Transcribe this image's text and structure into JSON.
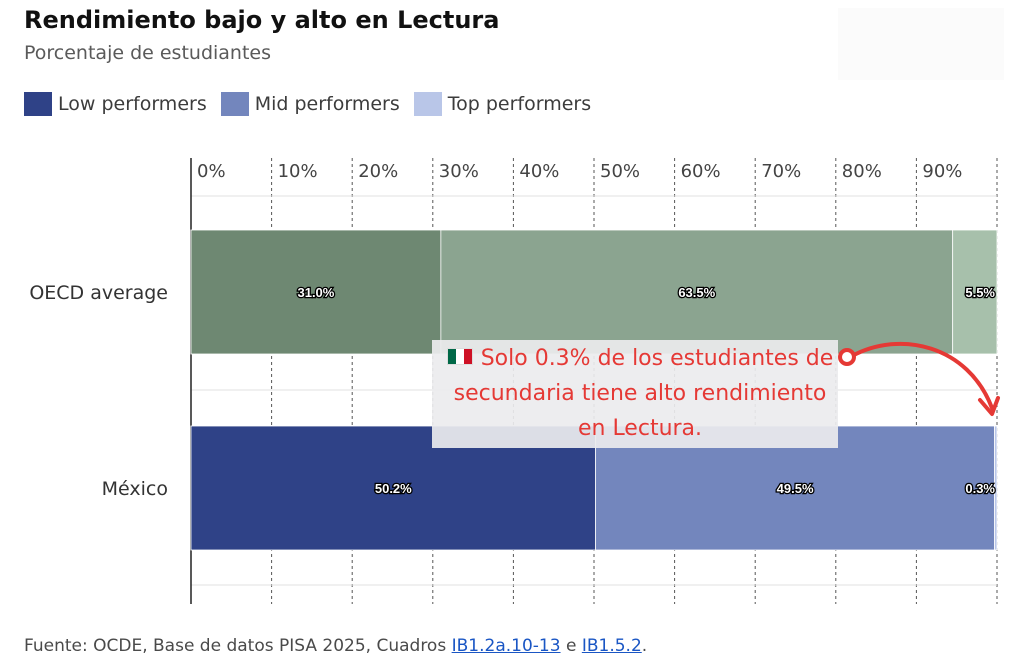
{
  "title": "Rendimiento bajo y alto en Lectura",
  "subtitle": "Porcentaje de estudiantes",
  "legend": [
    {
      "label": "Low performers",
      "color": "#2f4287"
    },
    {
      "label": "Mid performers",
      "color": "#7386bd"
    },
    {
      "label": "Top performers",
      "color": "#b9c6e8"
    }
  ],
  "annotation": {
    "flag_icon": "mexico-flag-icon",
    "text": "Solo 0.3% de los estudiantes de secundaria tiene alto rendimiento en Lectura.",
    "color": "#e53935"
  },
  "source": {
    "prefix": "Fuente: OCDE, Base de datos PISA 2025, Cuadros ",
    "link1": "IB1.2a.10-13",
    "middle": " e ",
    "link2": "IB1.5.2",
    "suffix": "."
  },
  "chart_data": {
    "type": "bar",
    "orientation": "horizontal",
    "stacked": true,
    "title": "Rendimiento bajo y alto en Lectura",
    "subtitle": "Porcentaje de estudiantes",
    "categories": [
      "OECD average",
      "México"
    ],
    "series": [
      {
        "name": "Low performers",
        "values": [
          31.0,
          50.2
        ],
        "labels": [
          "31.0%",
          "50.2%"
        ]
      },
      {
        "name": "Mid performers",
        "values": [
          63.5,
          49.5
        ],
        "labels": [
          "63.5%",
          "49.5%"
        ]
      },
      {
        "name": "Top performers",
        "values": [
          5.5,
          0.3
        ],
        "labels": [
          "5.5%",
          "0.3%"
        ]
      }
    ],
    "bar_colors": [
      [
        "#6e8872",
        "#8ba490",
        "#a7c0ab"
      ],
      [
        "#2f4287",
        "#7386bd",
        "#b9c6e8"
      ]
    ],
    "x_ticks": [
      "0%",
      "10%",
      "20%",
      "30%",
      "40%",
      "50%",
      "60%",
      "70%",
      "80%",
      "90%"
    ],
    "xlim": [
      0,
      100
    ],
    "grid": "dashed vertical",
    "legend_position": "top-left"
  }
}
